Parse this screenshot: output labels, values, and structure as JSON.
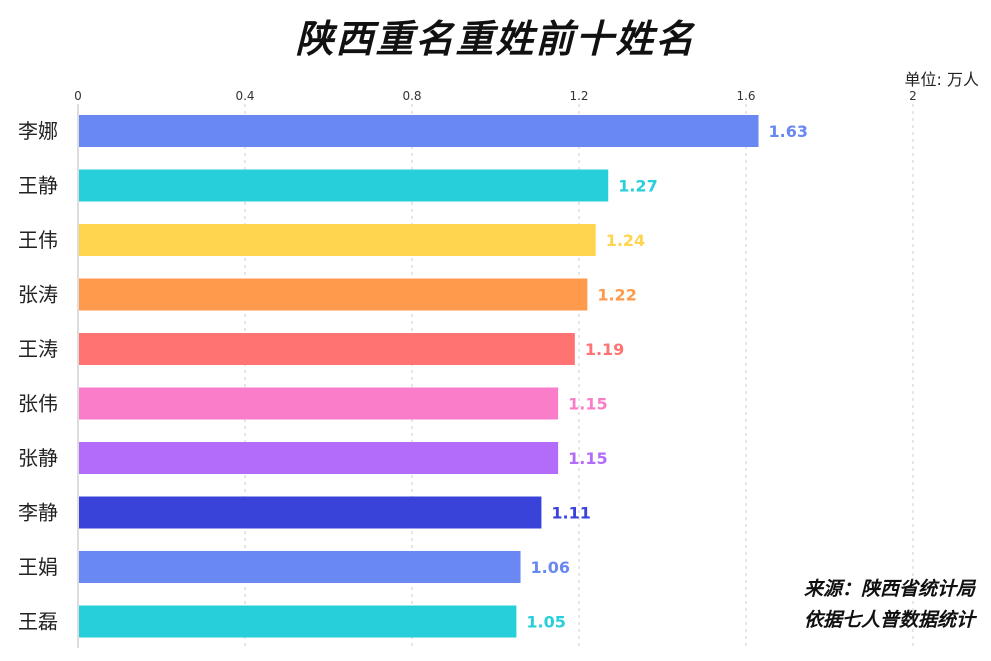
{
  "title": "陕西重名重姓前十姓名",
  "unit_label": "单位: 万人",
  "source": {
    "line1": "来源：陕西省统计局",
    "line2": "依据七人普数据统计"
  },
  "chart_data": {
    "type": "bar",
    "orientation": "horizontal",
    "title": "陕西重名重姓前十姓名",
    "unit": "万人",
    "categories": [
      "李娜",
      "王静",
      "王伟",
      "张涛",
      "王涛",
      "张伟",
      "张静",
      "李静",
      "王娟",
      "王磊"
    ],
    "values": [
      1.63,
      1.27,
      1.24,
      1.22,
      1.19,
      1.15,
      1.15,
      1.11,
      1.06,
      1.05
    ],
    "value_labels": [
      "1.63",
      "1.27",
      "1.24",
      "1.22",
      "1.19",
      "1.15",
      "1.15",
      "1.11",
      "1.06",
      "1.05"
    ],
    "colors": [
      "#6A88F2",
      "#26CFDA",
      "#FFD54F",
      "#FF9A4D",
      "#FF7373",
      "#F97DC8",
      "#B36BFA",
      "#3A43D9",
      "#6A88F2",
      "#26CFDA"
    ],
    "xlim": [
      0,
      2
    ],
    "x_ticks": [
      "0",
      "0.4",
      "0.8",
      "1.2",
      "1.6",
      "2"
    ],
    "x_axis_position": "top",
    "grid": "vertical dashed",
    "legend": "none"
  }
}
